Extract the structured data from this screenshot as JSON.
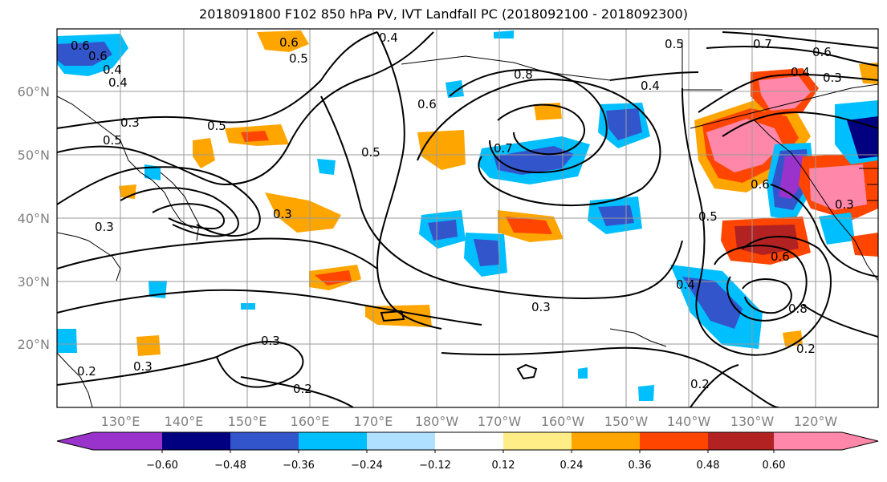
{
  "title": "2018091800 F102 850 hPa PV, IVT Landfall PC (2018092100 - 2018092300)",
  "lat_labels": [
    "60°N",
    "50°N",
    "40°N",
    "30°N",
    "20°N"
  ],
  "lon_labels": [
    "130°E",
    "140°E",
    "150°E",
    "160°E",
    "170°E",
    "180°W",
    "170°W",
    "160°W",
    "150°W",
    "140°W",
    "130°W",
    "120°W"
  ],
  "colorbar": {
    "colors": [
      "#9933cc",
      "#000080",
      "#3355cc",
      "#00bfff",
      "#b0e0ff",
      "#ffffff",
      "#ffee88",
      "#ffa500",
      "#ff4500",
      "#b22222",
      "#ff88aa"
    ],
    "labels": [
      "−0.60",
      "−0.48",
      "−0.36",
      "−0.24",
      "−0.12",
      "0.12",
      "0.24",
      "0.36",
      "0.48",
      "0.60"
    ]
  },
  "contour_labels": [
    "0.6",
    "0.4",
    "0.5",
    "0.4",
    "0.3",
    "0.5",
    "0.3",
    "0.5",
    "0.6",
    "0.4",
    "0.6",
    "0.3",
    "0.5",
    "0.7",
    "0.6",
    "0.8",
    "0.3",
    "0.3",
    "0.2",
    "0.3",
    "0.2",
    "0.4",
    "0.8",
    "0.2",
    "0.5",
    "0.7",
    "0.6",
    "0.4",
    "0.3",
    "0.5",
    "0.4",
    "0.6",
    "0.6",
    "0.2",
    "0.3"
  ]
}
